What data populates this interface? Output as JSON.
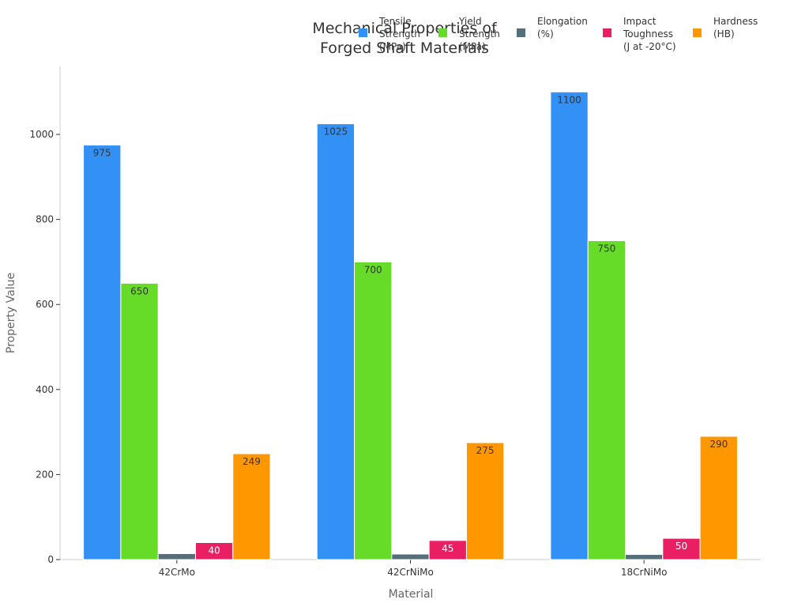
{
  "chart_data": {
    "type": "bar",
    "title": [
      "Mechanical Properties of",
      "Forged Shaft Materials"
    ],
    "xlabel": "Material",
    "ylabel": "Property Value",
    "categories": [
      "42CrMo",
      "42CrNiMo",
      "18CrNiMo"
    ],
    "ylim": [
      0,
      1160
    ],
    "yticks": [
      0,
      200,
      400,
      600,
      800,
      1000
    ],
    "grid": false,
    "legend_position": "top",
    "series": [
      {
        "name": [
          "Tensile",
          "Strength",
          "(MPa)"
        ],
        "values": [
          975,
          1025,
          1100
        ],
        "color": "#3391f5",
        "label_color": "#333333"
      },
      {
        "name": [
          "Yield",
          "Strength",
          "(MPa)"
        ],
        "values": [
          650,
          700,
          750
        ],
        "color": "#66dc29",
        "label_color": "#333333"
      },
      {
        "name": [
          "Elongation",
          "(%)"
        ],
        "values": [
          14,
          13,
          12
        ],
        "color": "#546e7a",
        "label_color": "#ffffff"
      },
      {
        "name": [
          "Impact",
          "Toughness",
          "(J at -20°C)"
        ],
        "values": [
          40,
          45,
          50
        ],
        "color": "#e91e63",
        "label_color": "#ffffff"
      },
      {
        "name": [
          "Hardness",
          "(HB)"
        ],
        "values": [
          249,
          275,
          290
        ],
        "color": "#ff9800",
        "label_color": "#333333"
      }
    ]
  }
}
